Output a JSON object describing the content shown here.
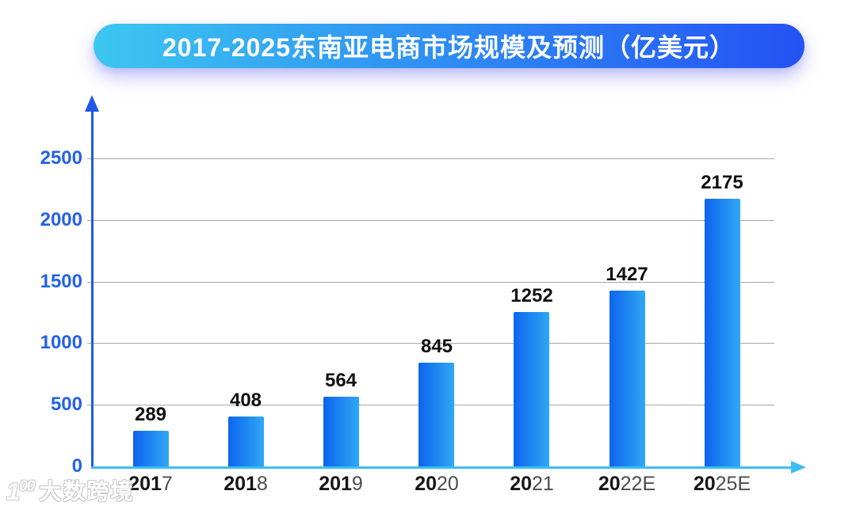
{
  "title_banner": {
    "text": "2017-2025东南亚电商市场规模及预测（亿美元）"
  },
  "chart_data": {
    "type": "bar",
    "title": "2017-2025东南亚电商市场规模及预测（亿美元）",
    "unit": "亿美元",
    "categories": [
      "2017",
      "2018",
      "2019",
      "2020",
      "2021",
      "2022E",
      "2025E"
    ],
    "category_parts": [
      [
        "201",
        "7"
      ],
      [
        "201",
        "8"
      ],
      [
        "201",
        "9"
      ],
      [
        "20",
        "20"
      ],
      [
        "20",
        "21"
      ],
      [
        "20",
        "22E"
      ],
      [
        "20",
        "25E"
      ]
    ],
    "values": [
      289,
      408,
      564,
      845,
      1252,
      1427,
      2175
    ],
    "xlabel": "",
    "ylabel": "",
    "yticks": [
      0,
      500,
      1000,
      1500,
      2000,
      2500
    ],
    "ylim": [
      0,
      2900
    ],
    "grid": "horizontal",
    "legend": "none"
  },
  "colors": {
    "bar_gradient_from": "#0d64ee",
    "bar_gradient_to": "#2fa8f4",
    "y_axis": "#2158e6",
    "x_axis": "#3cbef2",
    "y_tick_label": "#2361e8",
    "gridline": "#a7a7a7",
    "value_label": "#101010",
    "x_label_bold": "#161616",
    "x_label_rest": "#4c4c4c",
    "title_gradient_from": "#3cc7f0",
    "title_gradient_mid": "#2e8cf2",
    "title_gradient_to": "#2452f4",
    "title_text": "#ffffff"
  },
  "watermark": {
    "logo_one": "1",
    "logo_oo": "00",
    "text": "大数跨境"
  }
}
